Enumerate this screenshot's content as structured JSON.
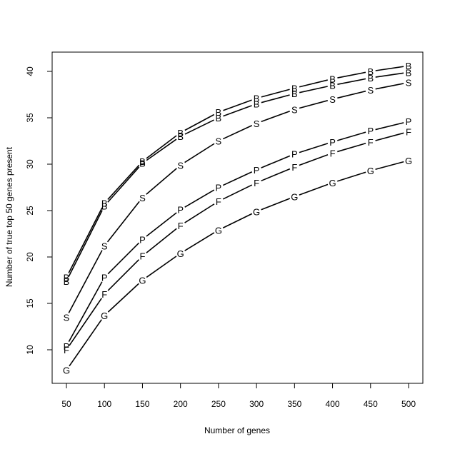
{
  "chart_data": {
    "type": "line",
    "title": "",
    "xlabel": "Number of genes",
    "ylabel": "Number of true top 50 genes present",
    "x": [
      50,
      100,
      150,
      200,
      250,
      300,
      350,
      400,
      450,
      500
    ],
    "xticks": [
      "50",
      "100",
      "150",
      "200",
      "250",
      "300",
      "350",
      "400",
      "450",
      "500"
    ],
    "yticks": [
      "10",
      "15",
      "20",
      "25",
      "30",
      "35",
      "40"
    ],
    "xlim": [
      50,
      500
    ],
    "ylim": [
      10,
      40
    ],
    "grid": false,
    "point_marker": "letter",
    "series": [
      {
        "marker": "B",
        "values": [
          17.8,
          25.8,
          30.3,
          33.4,
          35.6,
          37.1,
          38.2,
          39.2,
          40.0,
          40.6
        ]
      },
      {
        "marker": "B",
        "values": [
          17.4,
          25.5,
          30.1,
          33.0,
          35.0,
          36.5,
          37.6,
          38.5,
          39.3,
          39.9
        ]
      },
      {
        "marker": "S",
        "values": [
          13.5,
          21.2,
          26.4,
          29.9,
          32.5,
          34.4,
          35.9,
          37.0,
          38.0,
          38.8
        ]
      },
      {
        "marker": "P",
        "values": [
          10.4,
          17.8,
          21.9,
          25.1,
          27.5,
          29.4,
          31.1,
          32.4,
          33.6,
          34.6
        ]
      },
      {
        "marker": "F",
        "values": [
          10.0,
          16.0,
          20.1,
          23.4,
          26.0,
          28.0,
          29.7,
          31.2,
          32.4,
          33.5
        ]
      },
      {
        "marker": "G",
        "values": [
          7.8,
          13.7,
          17.5,
          20.4,
          22.9,
          24.9,
          26.5,
          28.0,
          29.3,
          30.4
        ]
      }
    ]
  }
}
